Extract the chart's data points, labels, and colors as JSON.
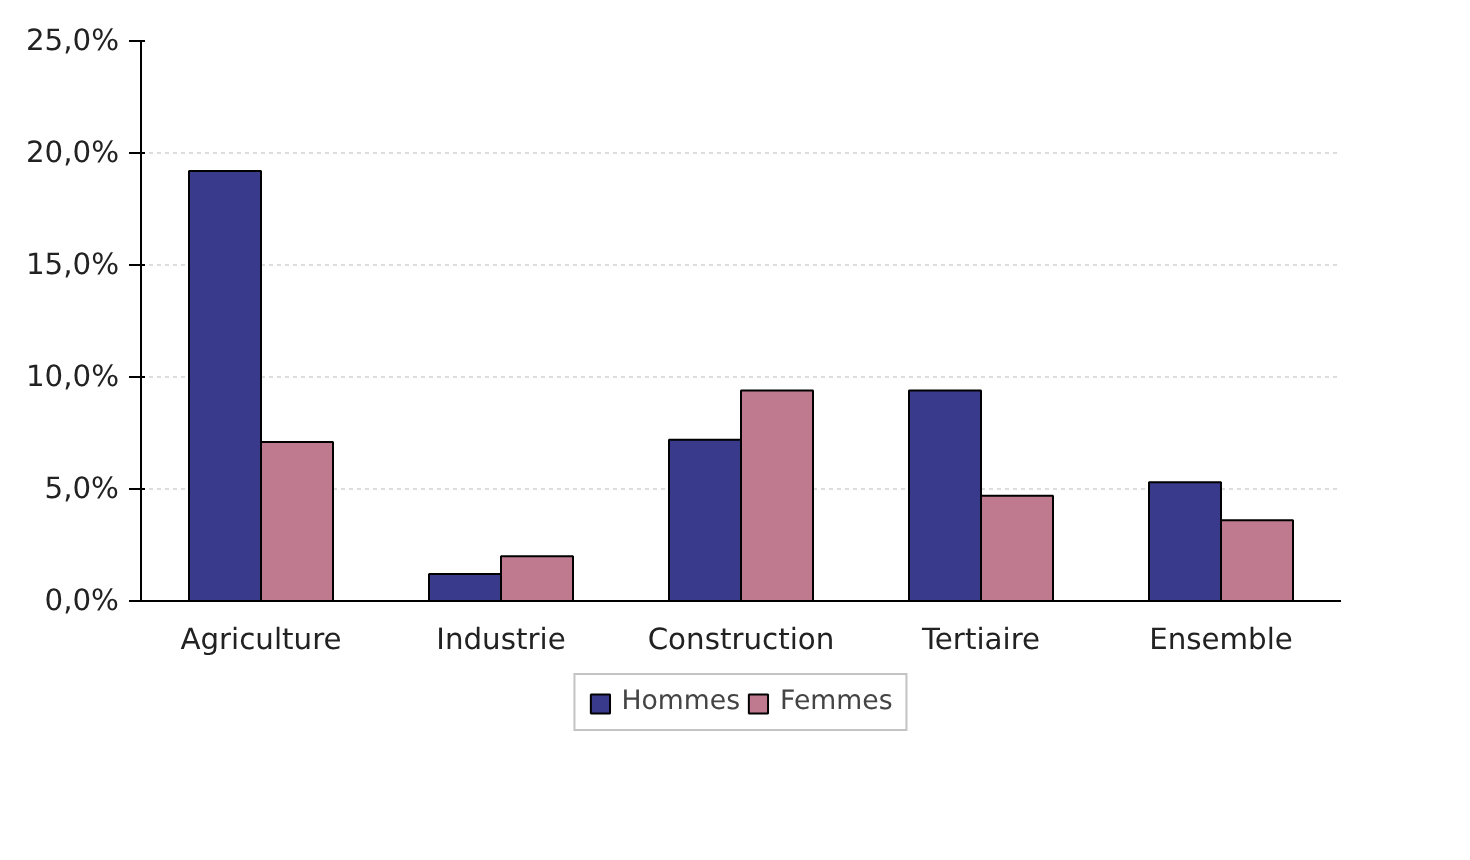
{
  "chart_data": {
    "type": "bar",
    "categories": [
      "Agriculture",
      "Industrie",
      "Construction",
      "Tertiaire",
      "Ensemble"
    ],
    "series": [
      {
        "name": "Hommes",
        "color": "#3a3a8c",
        "values": [
          19.2,
          1.2,
          7.2,
          9.4,
          5.3
        ]
      },
      {
        "name": "Femmes",
        "color": "#c07a90",
        "values": [
          7.1,
          2.0,
          9.4,
          4.7,
          3.6
        ]
      }
    ],
    "ylim": [
      0,
      25
    ],
    "yticks": [
      {
        "value": 0,
        "label": "0,0%"
      },
      {
        "value": 5,
        "label": "5,0%"
      },
      {
        "value": 10,
        "label": "10,0%"
      },
      {
        "value": 15,
        "label": "15,0%"
      },
      {
        "value": 20,
        "label": "20,0%"
      },
      {
        "value": 25,
        "label": "25,0%"
      }
    ],
    "grid": "y",
    "legend": "bottom"
  }
}
